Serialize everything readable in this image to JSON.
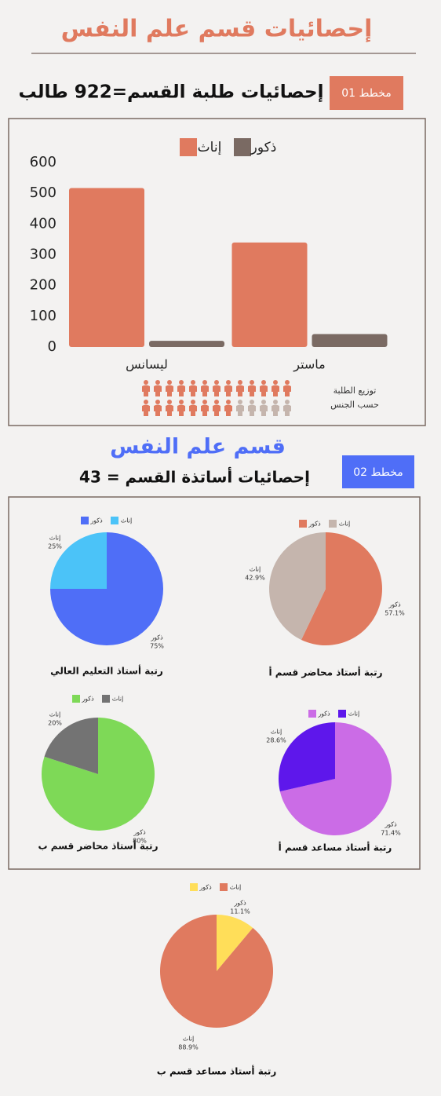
{
  "header": {
    "title": "إحصائيات قسم علم النفس"
  },
  "section1": {
    "badge": "مخطط 01",
    "icon_caption": [
      "توزيع الطلبة",
      "حسب الجنس"
    ]
  },
  "section2": {
    "title": "قسم علم النفس",
    "badge": "مخطط 02",
    "subtitle": "إحصائيات أساتذة القسم = 43"
  },
  "chart_data": [
    {
      "type": "bar",
      "title": "إحصائيات طلبة القسم=922 طالب",
      "categories": [
        "ليسانس",
        "ماستر"
      ],
      "series": [
        {
          "name": "إناث",
          "color": "#e07a5f",
          "values": [
            517,
            340
          ]
        },
        {
          "name": "ذكور",
          "color": "#7a6a63",
          "values": [
            20,
            42
          ]
        }
      ],
      "ylim": [
        0,
        600
      ],
      "yticks": [
        0,
        100,
        200,
        300,
        400,
        500,
        600
      ],
      "grid": false
    },
    {
      "type": "pie",
      "title": "رتبة أستاذ التعليم العالي",
      "categories": [
        "ذكور",
        "إناث"
      ],
      "values": [
        75,
        25
      ],
      "value_labels": [
        "75%",
        "25%"
      ],
      "colors": [
        "#4f6ef7",
        "#4bc3f8"
      ]
    },
    {
      "type": "pie",
      "title": "رتبة أستاذ محاضر قسم أ",
      "categories": [
        "ذكور",
        "إناث"
      ],
      "values": [
        57.1,
        42.9
      ],
      "value_labels": [
        "57.1%",
        "42.9%"
      ],
      "colors": [
        "#e07a5f",
        "#c5b5ad"
      ]
    },
    {
      "type": "pie",
      "title": "رتبة أستاذ محاضر قسم ب",
      "categories": [
        "ذكور",
        "إناث"
      ],
      "values": [
        80,
        20
      ],
      "value_labels": [
        "80%",
        "20%"
      ],
      "colors": [
        "#7ed957",
        "#737373"
      ]
    },
    {
      "type": "pie",
      "title": "رتبة أستاذ مساعد قسم أ",
      "categories": [
        "ذكور",
        "إناث"
      ],
      "values": [
        71.4,
        28.6
      ],
      "value_labels": [
        "71.4%",
        "28.6%"
      ],
      "colors": [
        "#cb6ce6",
        "#5e17eb"
      ]
    },
    {
      "type": "pie",
      "title": "رتبة أستاذ مساعد قسم ب",
      "categories": [
        "ذكور",
        "إناث"
      ],
      "values": [
        11.1,
        88.9
      ],
      "value_labels": [
        "11.1%",
        "88.9%"
      ],
      "colors": [
        "#ffde59",
        "#e07a5f"
      ]
    }
  ]
}
